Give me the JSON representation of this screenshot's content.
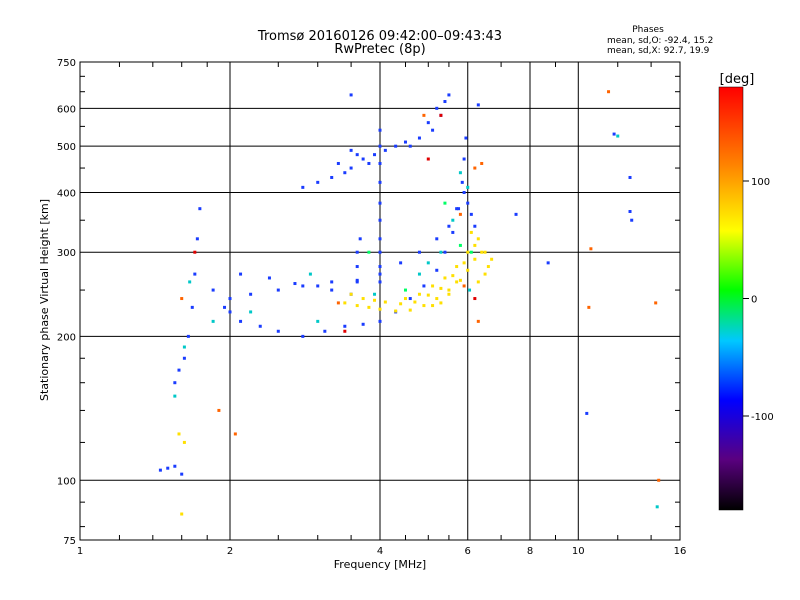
{
  "chart_data": {
    "type": "scatter",
    "title": "Tromsø 20160126 09:42:00–09:43:43",
    "subtitle": "RwPretec (8p)",
    "xlabel": "Frequency [MHz]",
    "ylabel": "Stationary phase Virtual Height [km]",
    "x_scale": "log",
    "y_scale": "log",
    "xlim": [
      1,
      16
    ],
    "ylim": [
      75,
      750
    ],
    "x_ticks": [
      "1",
      "2",
      "4",
      "6",
      "8",
      "10",
      "16"
    ],
    "y_ticks": [
      "75",
      "100",
      "200",
      "300",
      "400",
      "500",
      "600",
      "750"
    ],
    "grid": true,
    "info_box": {
      "title": "Phases",
      "line_o": "mean, sd,O: -92.4, 15.2",
      "line_x": "mean, sd,X:  92.7, 19.9"
    },
    "colorbar": {
      "label": "[deg]",
      "range": [
        -180,
        180
      ],
      "ticks": [
        "100",
        "0",
        "-100"
      ]
    },
    "series": [
      {
        "mode": "O",
        "color": "#1a3cff",
        "points": [
          [
            1.45,
            105
          ],
          [
            1.5,
            106
          ],
          [
            1.55,
            107
          ],
          [
            1.6,
            103
          ],
          [
            1.55,
            160
          ],
          [
            1.58,
            170
          ],
          [
            1.62,
            180
          ],
          [
            1.65,
            200
          ],
          [
            1.68,
            230
          ],
          [
            1.7,
            270
          ],
          [
            1.72,
            320
          ],
          [
            1.74,
            370
          ],
          [
            1.85,
            250
          ],
          [
            1.95,
            230
          ],
          [
            2.0,
            225
          ],
          [
            2.1,
            215
          ],
          [
            2.3,
            210
          ],
          [
            2.5,
            205
          ],
          [
            2.8,
            200
          ],
          [
            3.1,
            205
          ],
          [
            3.4,
            210
          ],
          [
            3.7,
            212
          ],
          [
            4.0,
            215
          ],
          [
            4.3,
            225
          ],
          [
            4.6,
            240
          ],
          [
            4.9,
            255
          ],
          [
            5.2,
            275
          ],
          [
            5.4,
            300
          ],
          [
            5.6,
            330
          ],
          [
            5.75,
            370
          ],
          [
            5.85,
            420
          ],
          [
            5.9,
            470
          ],
          [
            5.95,
            520
          ],
          [
            2.0,
            240
          ],
          [
            2.2,
            245
          ],
          [
            2.5,
            250
          ],
          [
            2.8,
            255
          ],
          [
            3.2,
            260
          ],
          [
            3.6,
            262
          ],
          [
            4.0,
            270
          ],
          [
            4.4,
            285
          ],
          [
            4.8,
            300
          ],
          [
            5.2,
            320
          ],
          [
            5.5,
            340
          ],
          [
            5.7,
            370
          ],
          [
            2.1,
            270
          ],
          [
            2.4,
            265
          ],
          [
            2.7,
            258
          ],
          [
            3.0,
            255
          ],
          [
            3.2,
            250
          ],
          [
            3.5,
            245
          ],
          [
            2.8,
            410
          ],
          [
            3.0,
            420
          ],
          [
            3.2,
            430
          ],
          [
            3.5,
            450
          ],
          [
            3.7,
            470
          ],
          [
            3.9,
            480
          ],
          [
            4.1,
            490
          ],
          [
            4.3,
            500
          ],
          [
            4.5,
            510
          ],
          [
            3.3,
            460
          ],
          [
            3.5,
            490
          ],
          [
            3.6,
            480
          ],
          [
            3.8,
            460
          ],
          [
            3.4,
            440
          ],
          [
            4.6,
            500
          ],
          [
            4.8,
            520
          ],
          [
            5.0,
            560
          ],
          [
            5.2,
            600
          ],
          [
            5.4,
            620
          ],
          [
            5.5,
            640
          ],
          [
            5.3,
            580
          ],
          [
            5.1,
            540
          ],
          [
            4.0,
            260
          ],
          [
            4.0,
            280
          ],
          [
            4.0,
            300
          ],
          [
            4.0,
            320
          ],
          [
            4.0,
            350
          ],
          [
            4.0,
            380
          ],
          [
            4.0,
            420
          ],
          [
            4.0,
            460
          ],
          [
            4.0,
            500
          ],
          [
            4.0,
            540
          ],
          [
            3.6,
            300
          ],
          [
            3.6,
            280
          ],
          [
            3.6,
            260
          ],
          [
            3.65,
            320
          ],
          [
            5.9,
            400
          ],
          [
            6.0,
            380
          ],
          [
            6.1,
            360
          ],
          [
            6.2,
            340
          ]
        ]
      },
      {
        "mode": "X",
        "color": "#ffe000",
        "points": [
          [
            3.4,
            235
          ],
          [
            3.6,
            232
          ],
          [
            3.8,
            230
          ],
          [
            4.0,
            228
          ],
          [
            4.3,
            226
          ],
          [
            4.6,
            227
          ],
          [
            4.9,
            232
          ],
          [
            5.2,
            240
          ],
          [
            5.5,
            250
          ],
          [
            5.8,
            262
          ],
          [
            6.0,
            275
          ],
          [
            6.2,
            290
          ],
          [
            6.4,
            300
          ],
          [
            4.5,
            240
          ],
          [
            4.8,
            245
          ],
          [
            5.1,
            255
          ],
          [
            5.4,
            265
          ],
          [
            5.7,
            280
          ],
          [
            6.0,
            300
          ],
          [
            6.3,
            320
          ],
          [
            6.5,
            300
          ],
          [
            6.7,
            290
          ],
          [
            6.1,
            330
          ],
          [
            6.3,
            260
          ],
          [
            6.5,
            270
          ],
          [
            6.6,
            280
          ],
          [
            6.2,
            310
          ],
          [
            1.6,
            85
          ],
          [
            1.62,
            120
          ],
          [
            1.58,
            125
          ],
          [
            3.5,
            245
          ],
          [
            3.7,
            240
          ],
          [
            3.9,
            238
          ],
          [
            4.1,
            236
          ],
          [
            4.4,
            234
          ],
          [
            4.7,
            236
          ],
          [
            5.0,
            244
          ],
          [
            5.3,
            252
          ],
          [
            5.6,
            268
          ],
          [
            5.9,
            285
          ],
          [
            5.7,
            260
          ],
          [
            5.5,
            245
          ],
          [
            5.3,
            235
          ],
          [
            5.1,
            232
          ]
        ]
      },
      {
        "mode": "mixed",
        "color": "#00c8c8",
        "points": [
          [
            1.55,
            150
          ],
          [
            1.62,
            190
          ],
          [
            1.66,
            260
          ],
          [
            1.85,
            215
          ],
          [
            2.2,
            225
          ],
          [
            3.0,
            215
          ],
          [
            3.9,
            245
          ],
          [
            5.3,
            300
          ],
          [
            5.6,
            350
          ],
          [
            5.8,
            440
          ],
          [
            6.0,
            410
          ],
          [
            6.05,
            250
          ],
          [
            4.8,
            270
          ],
          [
            5.0,
            285
          ],
          [
            2.9,
            270
          ],
          [
            14.4,
            88
          ],
          [
            12.0,
            525
          ]
        ]
      },
      {
        "mode": "mixed",
        "color": "#ff6400",
        "points": [
          [
            1.6,
            240
          ],
          [
            1.9,
            140
          ],
          [
            2.05,
            125
          ],
          [
            5.8,
            360
          ],
          [
            6.2,
            450
          ],
          [
            6.4,
            460
          ],
          [
            6.3,
            215
          ],
          [
            10.5,
            230
          ],
          [
            11.5,
            650
          ],
          [
            14.5,
            100
          ],
          [
            14.3,
            235
          ],
          [
            10.6,
            305
          ],
          [
            5.9,
            255
          ],
          [
            4.9,
            580
          ],
          [
            3.3,
            235
          ]
        ]
      },
      {
        "mode": "mixed",
        "color": "#e00000",
        "points": [
          [
            5.3,
            580
          ],
          [
            5.0,
            470
          ],
          [
            3.4,
            205
          ],
          [
            1.7,
            300
          ],
          [
            6.2,
            240
          ]
        ]
      },
      {
        "mode": "mixed",
        "color": "#00ff66",
        "points": [
          [
            5.8,
            310
          ],
          [
            6.1,
            300
          ],
          [
            4.5,
            250
          ],
          [
            5.4,
            380
          ],
          [
            3.8,
            300
          ]
        ]
      },
      {
        "mode": "outlier",
        "color": "#1a3cff",
        "points": [
          [
            12.7,
            430
          ],
          [
            12.7,
            365
          ],
          [
            12.8,
            350
          ],
          [
            10.4,
            138
          ],
          [
            8.7,
            285
          ],
          [
            6.3,
            610
          ],
          [
            3.5,
            640
          ],
          [
            7.5,
            360
          ],
          [
            11.8,
            530
          ]
        ]
      }
    ]
  }
}
